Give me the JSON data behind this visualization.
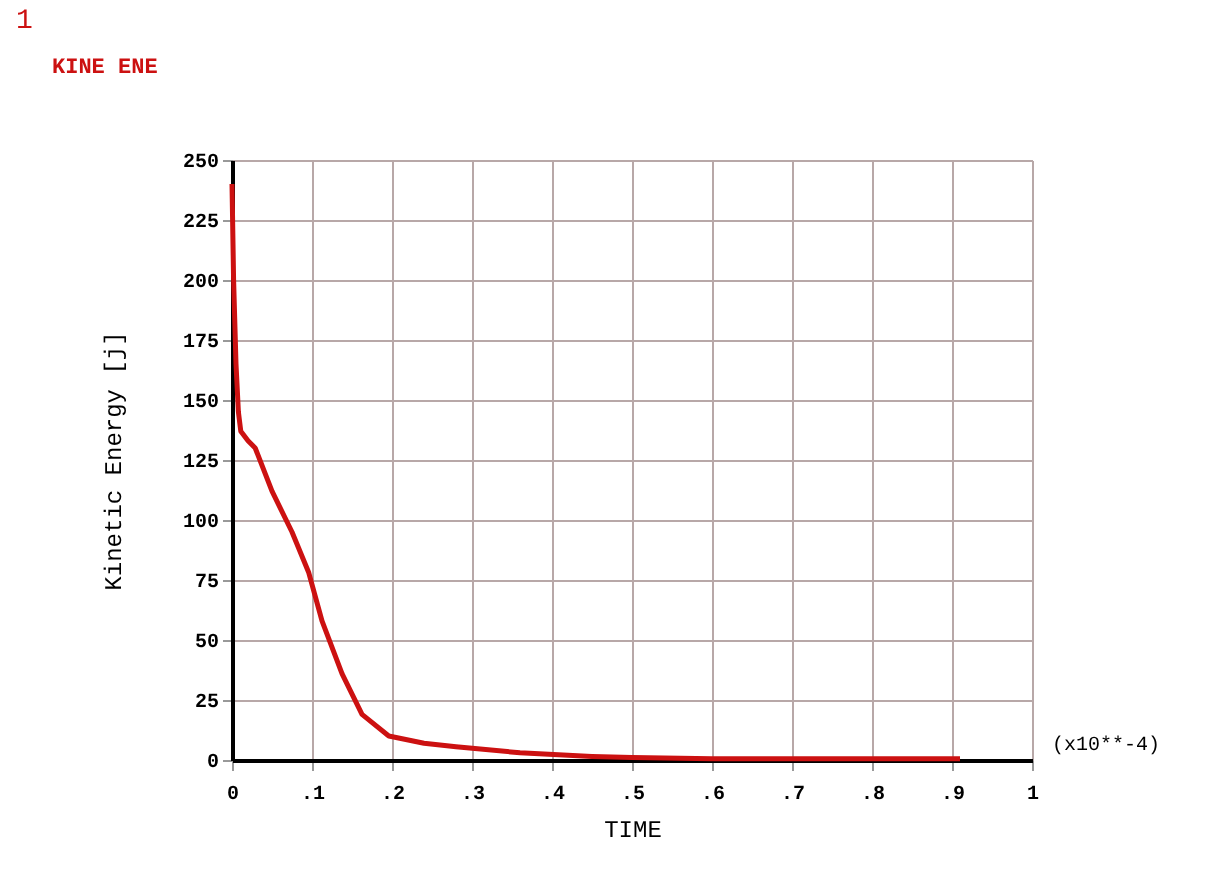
{
  "chart_data": {
    "type": "line",
    "xlabel": "TIME",
    "ylabel": "Kinetic Energy [j]",
    "annotations": [
      "1",
      "(x10**-4)"
    ],
    "x": [
      0,
      0.002,
      0.005,
      0.008,
      0.011,
      0.02,
      0.029,
      0.05,
      0.075,
      0.096,
      0.1125,
      0.1375,
      0.1625,
      0.196,
      0.24,
      0.28,
      0.36,
      0.45,
      0.5,
      0.6,
      0.7,
      0.8,
      0.91
    ],
    "series": [
      {
        "name": "KINE ENE",
        "color": "#cc1111",
        "values": [
          240,
          200,
          165,
          145,
          137,
          133,
          130,
          112,
          95,
          78,
          58,
          36,
          19,
          10,
          7,
          5.5,
          3,
          1.5,
          1,
          0.5,
          0.5,
          0.5,
          0.5
        ]
      }
    ],
    "xlim": [
      0,
      1
    ],
    "ylim": [
      0,
      250
    ],
    "xticks": [
      0,
      {
        "value": 0.1,
        "label": ".1"
      },
      {
        "value": 0.2,
        "label": ".2"
      },
      {
        "value": 0.3,
        "label": ".3"
      },
      {
        "value": 0.4,
        "label": ".4"
      },
      {
        "value": 0.5,
        "label": ".5"
      },
      {
        "value": 0.6,
        "label": ".6"
      },
      {
        "value": 0.7,
        "label": ".7"
      },
      {
        "value": 0.8,
        "label": ".8"
      },
      {
        "value": 0.9,
        "label": ".9"
      },
      1
    ],
    "yticks": [
      0,
      25,
      50,
      75,
      100,
      125,
      150,
      175,
      200,
      225,
      250
    ],
    "grid": true,
    "legend": "top left",
    "marker": "none",
    "line_style": "solid"
  }
}
